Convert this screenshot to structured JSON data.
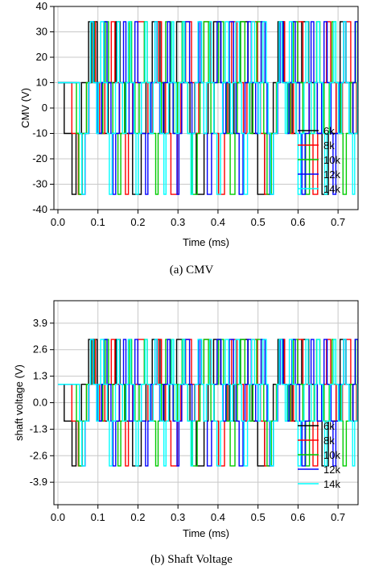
{
  "colors": {
    "6k": "#000000",
    "8k": "#ff0000",
    "10k": "#00cc00",
    "12k": "#0000ff",
    "14k": "#00ffff"
  },
  "chart_data": [
    {
      "type": "line",
      "caption": "(a)  CMV",
      "xlabel": "Time (ms)",
      "ylabel": "CMV (V)",
      "xlim": [
        -0.01,
        0.75
      ],
      "ylim": [
        -40,
        40
      ],
      "xticks": [
        0.0,
        0.1,
        0.2,
        0.3,
        0.4,
        0.5,
        0.6,
        0.7
      ],
      "xtick_labels": [
        "0.0",
        "0.1",
        "0.2",
        "0.3",
        "0.4",
        "0.5",
        "0.6",
        "0.7"
      ],
      "yticks": [
        -40,
        -30,
        -20,
        -10,
        0,
        10,
        20,
        30,
        40
      ],
      "ytick_labels": [
        "-40",
        "-30",
        "-20",
        "-10",
        "0",
        "10",
        "20",
        "30",
        "40"
      ],
      "grid": true,
      "legend_position": "lower-right",
      "levels": [
        -34,
        -10,
        10,
        34
      ],
      "series": [
        {
          "name": "6k",
          "freq_khz": 6
        },
        {
          "name": "8k",
          "freq_khz": 8
        },
        {
          "name": "10k",
          "freq_khz": 10
        },
        {
          "name": "12k",
          "freq_khz": 12
        },
        {
          "name": "14k",
          "freq_khz": 14
        }
      ]
    },
    {
      "type": "line",
      "caption": "(b)  Shaft  Voltage",
      "xlabel": "Time (ms)",
      "ylabel": "shaft voltage (V)",
      "xlim": [
        -0.01,
        0.75
      ],
      "ylim": [
        -5.0,
        5.0
      ],
      "xticks": [
        0.0,
        0.1,
        0.2,
        0.3,
        0.4,
        0.5,
        0.6,
        0.7
      ],
      "xtick_labels": [
        "0.0",
        "0.1",
        "0.2",
        "0.3",
        "0.4",
        "0.5",
        "0.6",
        "0.7"
      ],
      "yticks": [
        -3.9,
        -2.6,
        -1.3,
        0.0,
        1.3,
        2.6,
        3.9
      ],
      "ytick_labels": [
        "-3.9",
        "-2.6",
        "-1.3",
        "0.0",
        "1.3",
        "2.6",
        "3.9"
      ],
      "grid": true,
      "legend_position": "lower-right",
      "levels": [
        -3.1,
        -0.9,
        0.9,
        3.1
      ],
      "series": [
        {
          "name": "6k",
          "freq_khz": 6
        },
        {
          "name": "8k",
          "freq_khz": 8
        },
        {
          "name": "10k",
          "freq_khz": 10
        },
        {
          "name": "12k",
          "freq_khz": 12
        },
        {
          "name": "14k",
          "freq_khz": 14
        }
      ]
    }
  ]
}
